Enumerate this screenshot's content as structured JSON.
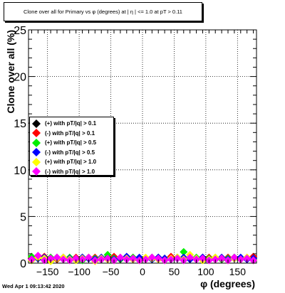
{
  "title": "Clone  over all for Primary vs φ (degrees) at | η | <= 1.0 at pT > 0.11",
  "footer_timestamp": "Wed Apr  1 09:13:42 2020",
  "chart_data": {
    "type": "scatter",
    "xlabel": "φ (degrees)",
    "ylabel": "Clone  over all (%)",
    "xlim": [
      -180,
      180
    ],
    "ylim": [
      0,
      25
    ],
    "xticks": [
      -150,
      -100,
      -50,
      0,
      50,
      100,
      150
    ],
    "yticks": [
      0,
      5,
      10,
      15,
      20,
      25
    ],
    "grid": true,
    "legend_position": "left-middle",
    "x": [
      -175,
      -165,
      -155,
      -145,
      -135,
      -125,
      -115,
      -105,
      -95,
      -85,
      -75,
      -65,
      -55,
      -45,
      -35,
      -25,
      -15,
      -5,
      5,
      15,
      25,
      35,
      45,
      55,
      65,
      75,
      85,
      95,
      105,
      115,
      125,
      135,
      145,
      155,
      165,
      175
    ],
    "series": [
      {
        "name": "(+) with pT/|q| > 0.1",
        "color": "#000000",
        "marker": "diamond",
        "values": [
          0.5,
          0.6,
          0.4,
          0.5,
          0.6,
          0.5,
          0.4,
          0.5,
          0.6,
          0.5,
          0.5,
          0.4,
          0.6,
          0.5,
          0.5,
          0.6,
          0.4,
          0.5,
          0.5,
          0.6,
          0.5,
          0.4,
          0.5,
          0.6,
          0.5,
          0.5,
          0.4,
          0.6,
          0.5,
          0.5,
          0.4,
          0.5,
          0.6,
          0.5,
          0.5,
          0.6
        ]
      },
      {
        "name": "(-) with pT/|q| > 0.1",
        "color": "#ff0000",
        "marker": "diamond",
        "values": [
          0.6,
          0.5,
          0.7,
          0.5,
          0.4,
          0.6,
          0.5,
          0.6,
          0.4,
          0.5,
          0.6,
          0.5,
          0.5,
          0.7,
          0.4,
          0.5,
          0.6,
          0.5,
          0.4,
          0.5,
          0.6,
          0.5,
          0.7,
          0.5,
          0.4,
          0.6,
          0.5,
          0.5,
          0.6,
          0.4,
          0.5,
          0.6,
          0.5,
          0.4,
          0.6,
          0.7
        ]
      },
      {
        "name": "(+) with pT/|q| > 0.5",
        "color": "#00ee00",
        "marker": "diamond",
        "values": [
          0.7,
          0.5,
          0.4,
          0.6,
          0.5,
          0.4,
          0.6,
          0.5,
          0.3,
          0.6,
          0.5,
          0.4,
          0.9,
          0.5,
          0.4,
          0.5,
          0.6,
          0.4,
          0.5,
          0.4,
          0.6,
          0.5,
          0.4,
          0.6,
          1.2,
          0.5,
          0.6,
          0.4,
          0.5,
          0.6,
          0.4,
          0.5,
          0.6,
          0.4,
          0.5,
          0.4
        ]
      },
      {
        "name": "(-) with pT/|q| > 0.5",
        "color": "#0000ff",
        "marker": "diamond",
        "values": [
          0.4,
          0.5,
          0.6,
          0.4,
          0.5,
          0.6,
          0.5,
          0.4,
          0.6,
          0.5,
          0.4,
          0.6,
          0.5,
          0.4,
          0.5,
          0.7,
          0.4,
          0.6,
          0.5,
          0.4,
          0.6,
          0.5,
          0.4,
          0.5,
          0.6,
          0.4,
          0.5,
          0.6,
          0.4,
          0.5,
          0.6,
          0.4,
          0.5,
          0.6,
          0.4,
          0.5
        ]
      },
      {
        "name": "(+) with pT/|q| > 1.0",
        "color": "#ffff00",
        "marker": "diamond",
        "values": [
          0.3,
          0.6,
          0.5,
          0.2,
          0.5,
          0.6,
          0.4,
          0.3,
          0.5,
          0.6,
          0.2,
          0.5,
          0.4,
          0.3,
          0.6,
          0.5,
          0.4,
          0.3,
          0.6,
          0.5,
          0.4,
          0.3,
          0.5,
          0.6,
          0.4,
          0.9,
          0.5,
          0.3,
          0.4,
          0.6,
          0.5,
          0.3,
          0.5,
          0.4,
          0.6,
          0.3
        ]
      },
      {
        "name": "(-) with pT/|q| > 1.0",
        "color": "#ff00ff",
        "marker": "diamond",
        "values": [
          0.4,
          0.8,
          0.3,
          0.5,
          0.6,
          0.4,
          0.3,
          0.5,
          0.4,
          0.6,
          0.3,
          0.4,
          0.5,
          0.3,
          0.6,
          0.4,
          0.5,
          0.3,
          0.4,
          0.6,
          0.5,
          0.3,
          0.4,
          0.5,
          0.3,
          0.6,
          0.4,
          0.5,
          0.3,
          0.4,
          0.5,
          0.3,
          0.6,
          0.4,
          0.5,
          0.3
        ]
      }
    ]
  }
}
